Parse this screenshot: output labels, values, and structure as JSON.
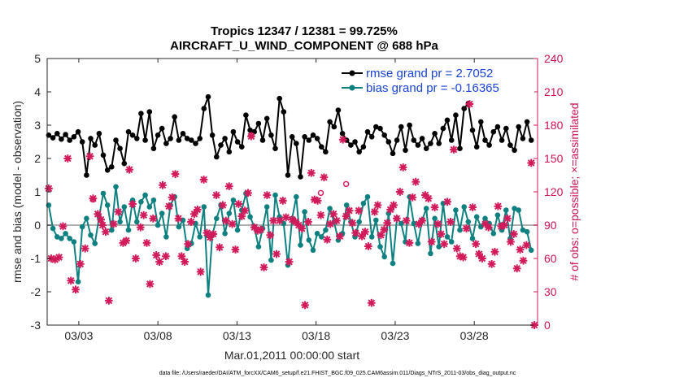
{
  "chart_data": {
    "type": "line",
    "title_line1": "Tropics 12347 / 12381 = 99.725%",
    "title_line2": "AIRCRAFT_U_WIND_COMPONENT @ 688 hPa",
    "xlabel": "Mar.01,2011 00:00:00 start",
    "ylabel_left": "rmse and bias (model - observation)",
    "ylabel_right": "# of obs: o=possible; ×=assimilated",
    "footnote": "data file: /Users/raeder/DAI/ATM_forcXX/CAM6_setup/f.e21.FHIST_BGC.f09_025.CAM6assim.011/Diags_NTrS_2011-03/obs_diag_output.nc",
    "xlim": [
      1.0,
      32.0
    ],
    "ylim_left": [
      -3,
      5
    ],
    "ylim_right": [
      0,
      240
    ],
    "left_ticks": [
      "-3",
      "-2",
      "-1",
      "0",
      "1",
      "2",
      "3",
      "4",
      "5"
    ],
    "right_ticks": [
      "0",
      "30",
      "60",
      "90",
      "120",
      "150",
      "180",
      "210",
      "240"
    ],
    "x_ticks": [
      {
        "value": 3,
        "label": "03/03"
      },
      {
        "value": 8,
        "label": "03/08"
      },
      {
        "value": 13,
        "label": "03/13"
      },
      {
        "value": 18,
        "label": "03/18"
      },
      {
        "value": 23,
        "label": "03/23"
      },
      {
        "value": 28,
        "label": "03/28"
      }
    ],
    "legend": {
      "rmse_label": "rmse grand pr = 2.7052",
      "bias_label": "bias grand pr = -0.16365"
    },
    "colors": {
      "rmse": "#000000",
      "bias": "#0e8080",
      "obs": "#d11a5a",
      "zero_line": "#b0b0b0",
      "legend_text": "#1a44d6"
    },
    "series": {
      "rmse": [
        2.7,
        2.62,
        2.75,
        2.58,
        2.72,
        2.55,
        2.65,
        2.8,
        2.5,
        1.5,
        2.6,
        2.4,
        2.75,
        2.1,
        1.65,
        1.75,
        2.55,
        2.3,
        1.85,
        2.8,
        2.7,
        2.6,
        3.35,
        2.55,
        3.4,
        2.3,
        2.7,
        2.9,
        2.45,
        2.6,
        3.25,
        2.55,
        2.75,
        2.6,
        2.55,
        2.45,
        2.6,
        3.5,
        3.85,
        2.7,
        2.05,
        2.4,
        2.6,
        2.2,
        2.8,
        2.5,
        2.35,
        3.3,
        2.85,
        2.8,
        3.05,
        2.55,
        3.2,
        2.7,
        2.3,
        3.8,
        3.4,
        1.5,
        2.65,
        2.45,
        1.45,
        2.65,
        2.55,
        2.7,
        2.6,
        2.35,
        2.2,
        3.1,
        2.95,
        3.45,
        2.75,
        2.55,
        2.4,
        2.5,
        2.2,
        2.35,
        2.8,
        2.65,
        2.95,
        2.9,
        2.7,
        2.5,
        2.15,
        2.55,
        2.95,
        2.25,
        3.0,
        2.55,
        2.4,
        2.6,
        2.3,
        2.45,
        2.75,
        2.45,
        2.9,
        3.15,
        2.55,
        3.3,
        2.3,
        3.5,
        3.65,
        2.85,
        2.35,
        3.1,
        2.55,
        2.4,
        2.8,
        2.95,
        2.55,
        2.9,
        2.4,
        2.25,
        2.95,
        2.6,
        3.1,
        2.55
      ],
      "bias": [
        0.6,
        -0.1,
        -0.35,
        -0.4,
        -0.25,
        -0.4,
        -0.5,
        -1.7,
        -0.05,
        0.2,
        -0.3,
        -0.55,
        0.25,
        0.95,
        0.6,
        -0.15,
        1.15,
        0.1,
        0.55,
        -0.15,
        0.75,
        0.1,
        0.7,
        0.9,
        0.55,
        0.75,
        0.0,
        0.35,
        -0.35,
        0.6,
        0.85,
        -0.05,
        0.15,
        -0.7,
        -0.55,
        0.05,
        -0.35,
        0.55,
        -2.1,
        -0.3,
        0.2,
        0.6,
        -0.25,
        0.35,
        0.75,
        -0.15,
        0.45,
        0.95,
        0.25,
        -0.05,
        -0.65,
        -0.1,
        0.55,
        -1.05,
        0.9,
        0.25,
        0.05,
        -1.2,
        0.2,
        0.85,
        -0.6,
        0.4,
        -0.45,
        -0.75,
        -0.25,
        -0.35,
        -0.15,
        0.5,
        0.1,
        -0.45,
        -0.25,
        0.6,
        0.1,
        -0.35,
        0.1,
        0.65,
        0.85,
        -0.35,
        0.15,
        -0.65,
        -0.95,
        0.35,
        -1.15,
        0.2,
        0.05,
        -0.5,
        0.85,
        0.05,
        -0.55,
        0.15,
        0.5,
        -0.85,
        0.2,
        -0.65,
        0.65,
        -0.35,
        -0.5,
        0.45,
        -0.15,
        0.55,
        0.1,
        -0.4,
        0.25,
        -0.05,
        0.2,
        0.05,
        -0.25,
        0.3,
        -0.15,
        0.45,
        -0.4,
        0.5,
        0.45,
        -0.15,
        -0.2,
        -0.75
      ],
      "obs_assimilated": [
        [
          1.1,
          123
        ],
        [
          1.25,
          60
        ],
        [
          1.5,
          59
        ],
        [
          1.75,
          61
        ],
        [
          2.0,
          89
        ],
        [
          2.3,
          150
        ],
        [
          2.5,
          40
        ],
        [
          2.8,
          32
        ],
        [
          3.1,
          55
        ],
        [
          3.4,
          69
        ],
        [
          3.7,
          152
        ],
        [
          3.9,
          114
        ],
        [
          4.2,
          100
        ],
        [
          4.4,
          95
        ],
        [
          4.5,
          90
        ],
        [
          4.7,
          84
        ],
        [
          4.9,
          22
        ],
        [
          5.2,
          91
        ],
        [
          5.5,
          102
        ],
        [
          5.8,
          74
        ],
        [
          6.0,
          76
        ],
        [
          6.2,
          140
        ],
        [
          6.4,
          109
        ],
        [
          6.6,
          60
        ],
        [
          6.9,
          88
        ],
        [
          7.1,
          99
        ],
        [
          7.3,
          74
        ],
        [
          7.5,
          37
        ],
        [
          7.7,
          96
        ],
        [
          7.9,
          63
        ],
        [
          8.1,
          57
        ],
        [
          8.3,
          126
        ],
        [
          8.5,
          62
        ],
        [
          8.7,
          107
        ],
        [
          8.9,
          115
        ],
        [
          9.1,
          136
        ],
        [
          9.3,
          96
        ],
        [
          9.5,
          62
        ],
        [
          9.7,
          57
        ],
        [
          9.9,
          73
        ],
        [
          10.1,
          93
        ],
        [
          10.3,
          100
        ],
        [
          10.5,
          104
        ],
        [
          10.7,
          48
        ],
        [
          10.9,
          131
        ],
        [
          11.1,
          83
        ],
        [
          11.3,
          79
        ],
        [
          11.5,
          82
        ],
        [
          11.7,
          117
        ],
        [
          11.9,
          70
        ],
        [
          12.1,
          108
        ],
        [
          12.3,
          94
        ],
        [
          12.5,
          125
        ],
        [
          12.7,
          91
        ],
        [
          12.9,
          68
        ],
        [
          13.1,
          109
        ],
        [
          13.3,
          98
        ],
        [
          13.5,
          103
        ],
        [
          13.7,
          119
        ],
        [
          13.9,
          170
        ],
        [
          14.1,
          88
        ],
        [
          14.3,
          85
        ],
        [
          14.5,
          86
        ],
        [
          14.7,
          52
        ],
        [
          14.9,
          117
        ],
        [
          15.1,
          81
        ],
        [
          15.3,
          94
        ],
        [
          15.5,
          64
        ],
        [
          15.7,
          94
        ],
        [
          15.9,
          112
        ],
        [
          16.1,
          97
        ],
        [
          16.3,
          57
        ],
        [
          16.5,
          95
        ],
        [
          16.7,
          93
        ],
        [
          16.9,
          90
        ],
        [
          17.1,
          87
        ],
        [
          17.3,
          18
        ],
        [
          17.5,
          93
        ],
        [
          17.7,
          137
        ],
        [
          17.9,
          113
        ],
        [
          18.1,
          112
        ],
        [
          18.3,
          99
        ],
        [
          18.5,
          133
        ],
        [
          18.7,
          77
        ],
        [
          18.9,
          91
        ],
        [
          19.1,
          100
        ],
        [
          19.3,
          94
        ],
        [
          19.5,
          80
        ],
        [
          19.7,
          167
        ],
        [
          19.9,
          98
        ],
        [
          20.1,
          103
        ],
        [
          20.3,
          92
        ],
        [
          20.5,
          83
        ],
        [
          20.7,
          103
        ],
        [
          20.9,
          80
        ],
        [
          21.1,
          84
        ],
        [
          21.3,
          71
        ],
        [
          21.5,
          20
        ],
        [
          21.7,
          102
        ],
        [
          21.9,
          108
        ],
        [
          22.1,
          81
        ],
        [
          22.3,
          86
        ],
        [
          22.5,
          92
        ],
        [
          22.7,
          104
        ],
        [
          22.9,
          108
        ],
        [
          23.1,
          96
        ],
        [
          23.3,
          120
        ],
        [
          23.5,
          142
        ],
        [
          23.7,
          94
        ],
        [
          23.9,
          74
        ],
        [
          24.1,
          115
        ],
        [
          24.3,
          129
        ],
        [
          24.5,
          91
        ],
        [
          24.7,
          94
        ],
        [
          24.9,
          117
        ],
        [
          25.1,
          114
        ],
        [
          25.3,
          75
        ],
        [
          25.5,
          106
        ],
        [
          25.7,
          91
        ],
        [
          25.9,
          82
        ],
        [
          26.1,
          73
        ],
        [
          26.3,
          111
        ],
        [
          26.5,
          93
        ],
        [
          26.7,
          158
        ],
        [
          26.9,
          69
        ],
        [
          27.1,
          62
        ],
        [
          27.3,
          61
        ],
        [
          27.5,
          87
        ],
        [
          27.7,
          199
        ],
        [
          27.9,
          106
        ],
        [
          28.1,
          73
        ],
        [
          28.3,
          64
        ],
        [
          28.5,
          60
        ],
        [
          28.7,
          91
        ],
        [
          28.9,
          88
        ],
        [
          29.1,
          55
        ],
        [
          29.3,
          66
        ],
        [
          29.5,
          107
        ],
        [
          29.7,
          89
        ],
        [
          29.9,
          90
        ],
        [
          30.1,
          96
        ],
        [
          30.3,
          75
        ],
        [
          30.5,
          82
        ],
        [
          30.7,
          51
        ],
        [
          30.9,
          68
        ],
        [
          31.1,
          58
        ],
        [
          31.3,
          72
        ],
        [
          31.6,
          146
        ],
        [
          31.8,
          0
        ]
      ],
      "obs_possible": [
        [
          3.9,
          113
        ],
        [
          13.9,
          171
        ],
        [
          18.3,
          119
        ],
        [
          19.9,
          127
        ]
      ]
    }
  }
}
